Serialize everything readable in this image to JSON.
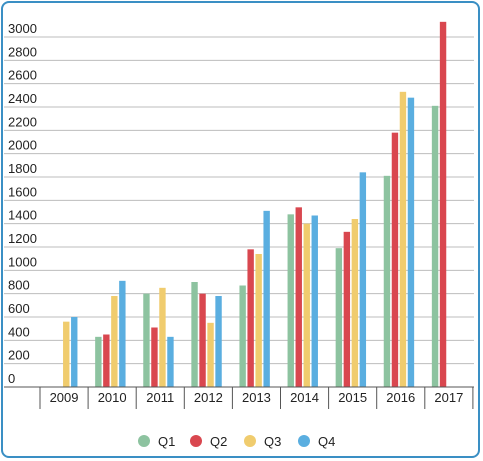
{
  "chart_data": {
    "type": "bar",
    "title": "",
    "xlabel": "",
    "ylabel": "",
    "categories": [
      "2009",
      "2010",
      "2011",
      "2012",
      "2013",
      "2014",
      "2015",
      "2016",
      "2017"
    ],
    "y_ticks": [
      "0",
      "200",
      "400",
      "600",
      "800",
      "1000",
      "1200",
      "1400",
      "1600",
      "1800",
      "2000",
      "2200",
      "2400",
      "2600",
      "2800",
      "3000"
    ],
    "ylim": [
      0,
      3000
    ],
    "grid": true,
    "legend_position": "bottom",
    "series": [
      {
        "name": "Q1",
        "color": "#8dc3a0",
        "values": [
          null,
          430,
          800,
          900,
          870,
          1480,
          1190,
          1810,
          2410
        ]
      },
      {
        "name": "Q2",
        "color": "#d9474f",
        "values": [
          null,
          450,
          510,
          800,
          1180,
          1540,
          1330,
          2180,
          3130
        ]
      },
      {
        "name": "Q3",
        "color": "#f0cc6e",
        "values": [
          560,
          780,
          850,
          550,
          1140,
          1400,
          1440,
          2530,
          null
        ]
      },
      {
        "name": "Q4",
        "color": "#5aaee0",
        "values": [
          600,
          910,
          430,
          780,
          1510,
          1470,
          1840,
          2480,
          null
        ]
      }
    ]
  }
}
